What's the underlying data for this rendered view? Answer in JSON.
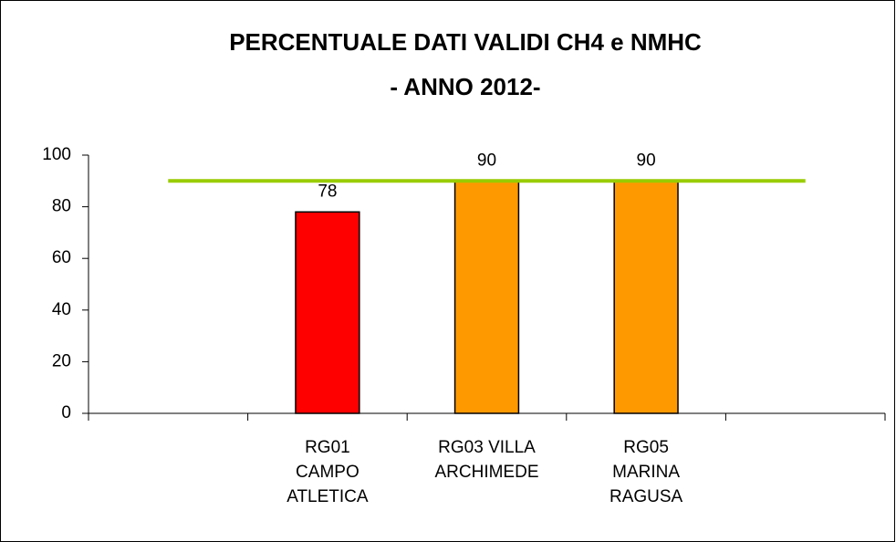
{
  "chart_data": {
    "type": "bar",
    "title": "PERCENTUALE DATI VALIDI CH4 e NMHC",
    "subtitle": "- ANNO 2012-",
    "categories": [
      null,
      "RG01\nCAMPO\nATLETICA",
      "RG03 VILLA\nARCHIMEDE",
      "RG05\nMARINA\nRAGUSA",
      null
    ],
    "values": [
      null,
      78,
      90,
      90,
      null
    ],
    "colors": [
      null,
      "#ff0000",
      "#ff9900",
      "#ff9900",
      null
    ],
    "ylim": [
      0,
      100
    ],
    "yticks": [
      0,
      20,
      40,
      60,
      80,
      100
    ],
    "grid": false,
    "reference_line": {
      "value": 90,
      "color": "#99cc00"
    }
  }
}
